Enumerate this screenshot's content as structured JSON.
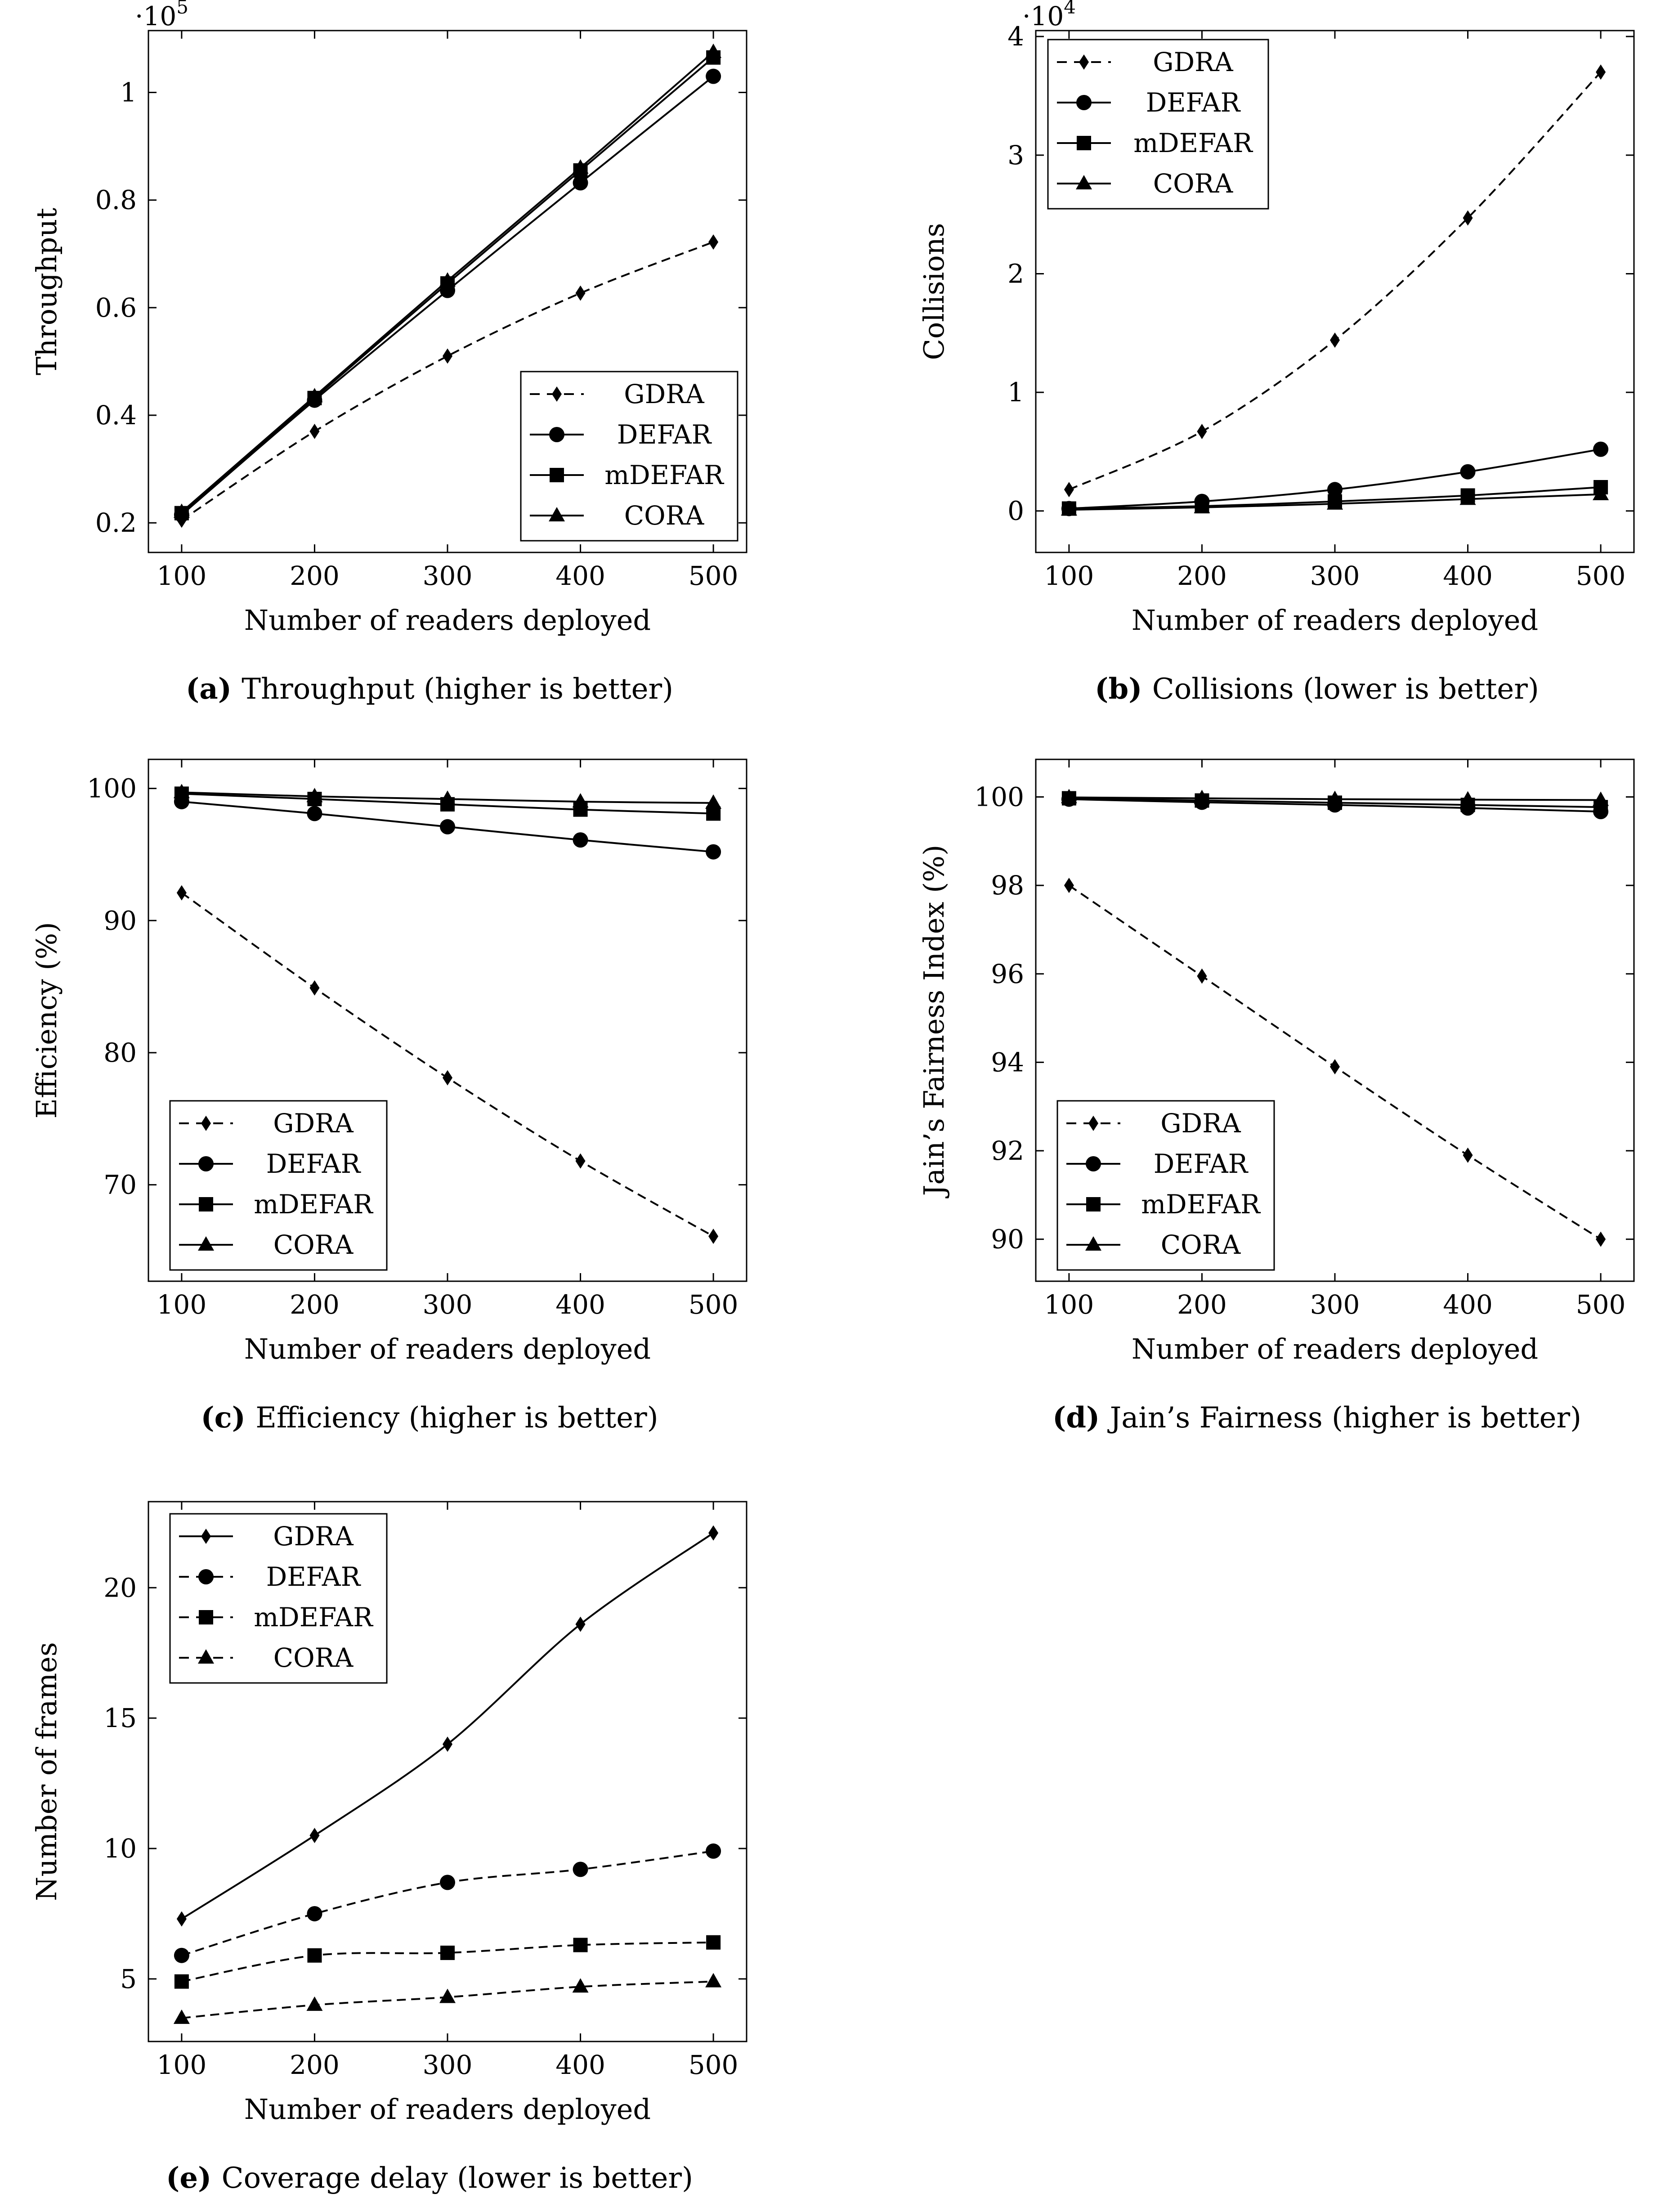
{
  "chart_data": [
    {
      "id": "a",
      "type": "line",
      "caption_letter": "(a)",
      "caption_text": "Throughput (higher is better)",
      "xlabel": "Number of readers deployed",
      "ylabel": "Throughput",
      "scale_label": "·10",
      "scale_exp": "5",
      "x": [
        100,
        200,
        300,
        400,
        500
      ],
      "xlim": [
        75,
        525
      ],
      "ylim": [
        0.145,
        1.115
      ],
      "yticks": [
        0.2,
        0.4,
        0.6,
        0.8,
        1
      ],
      "ytick_labels": [
        "0.2",
        "0.4",
        "0.6",
        "0.8",
        "1"
      ],
      "legend_position": "bottom-right",
      "series": [
        {
          "name": "GDRA",
          "marker": "diamond",
          "dashed": true,
          "values": [
            0.205,
            0.37,
            0.51,
            0.627,
            0.722
          ]
        },
        {
          "name": "DEFAR",
          "marker": "circle",
          "dashed": false,
          "values": [
            0.215,
            0.428,
            0.632,
            0.832,
            1.03
          ]
        },
        {
          "name": "mDEFAR",
          "marker": "square",
          "dashed": false,
          "values": [
            0.218,
            0.432,
            0.645,
            0.855,
            1.065
          ]
        },
        {
          "name": "CORA",
          "marker": "triangle",
          "dashed": false,
          "values": [
            0.22,
            0.435,
            0.65,
            0.86,
            1.075
          ]
        }
      ]
    },
    {
      "id": "b",
      "type": "line",
      "caption_letter": "(b)",
      "caption_text": "Collisions (lower is better)",
      "xlabel": "Number of readers deployed",
      "ylabel": "Collisions",
      "scale_label": "·10",
      "scale_exp": "4",
      "x": [
        100,
        200,
        300,
        400,
        500
      ],
      "xlim": [
        75,
        525
      ],
      "ylim": [
        -0.35,
        4.05
      ],
      "yticks": [
        0,
        1,
        2,
        3,
        4
      ],
      "ytick_labels": [
        "0",
        "1",
        "2",
        "3",
        "4"
      ],
      "legend_position": "top-left",
      "series": [
        {
          "name": "GDRA",
          "marker": "diamond",
          "dashed": true,
          "values": [
            0.18,
            0.67,
            1.44,
            2.47,
            3.7
          ]
        },
        {
          "name": "DEFAR",
          "marker": "circle",
          "dashed": false,
          "values": [
            0.02,
            0.08,
            0.18,
            0.33,
            0.52
          ]
        },
        {
          "name": "mDEFAR",
          "marker": "square",
          "dashed": false,
          "values": [
            0.02,
            0.04,
            0.08,
            0.13,
            0.2
          ]
        },
        {
          "name": "CORA",
          "marker": "triangle",
          "dashed": false,
          "values": [
            0.01,
            0.03,
            0.06,
            0.1,
            0.14
          ]
        }
      ]
    },
    {
      "id": "c",
      "type": "line",
      "caption_letter": "(c)",
      "caption_text": "Efficiency (higher is better)",
      "xlabel": "Number of readers deployed",
      "ylabel": "Efficiency (%)",
      "scale_label": "",
      "scale_exp": "",
      "x": [
        100,
        200,
        300,
        400,
        500
      ],
      "xlim": [
        75,
        525
      ],
      "ylim": [
        62.7,
        102.2
      ],
      "yticks": [
        70,
        80,
        90,
        100
      ],
      "ytick_labels": [
        "70",
        "80",
        "90",
        "100"
      ],
      "legend_position": "bottom-left",
      "series": [
        {
          "name": "GDRA",
          "marker": "diamond",
          "dashed": true,
          "values": [
            92.1,
            84.9,
            78.1,
            71.8,
            66.1
          ]
        },
        {
          "name": "DEFAR",
          "marker": "circle",
          "dashed": false,
          "values": [
            99.0,
            98.1,
            97.1,
            96.1,
            95.2
          ]
        },
        {
          "name": "mDEFAR",
          "marker": "square",
          "dashed": false,
          "values": [
            99.6,
            99.2,
            98.8,
            98.4,
            98.1
          ]
        },
        {
          "name": "CORA",
          "marker": "triangle",
          "dashed": false,
          "values": [
            99.7,
            99.4,
            99.2,
            99.0,
            98.9
          ]
        }
      ]
    },
    {
      "id": "d",
      "type": "line",
      "caption_letter": "(d)",
      "caption_text": "Jain’s Fairness (higher is better)",
      "xlabel": "Number of readers deployed",
      "ylabel": "Jain’s Fairness Index (%)",
      "scale_label": "",
      "scale_exp": "",
      "x": [
        100,
        200,
        300,
        400,
        500
      ],
      "xlim": [
        75,
        525
      ],
      "ylim": [
        89.05,
        100.85
      ],
      "yticks": [
        90,
        92,
        94,
        96,
        98,
        100
      ],
      "ytick_labels": [
        "90",
        "92",
        "94",
        "96",
        "98",
        "100"
      ],
      "legend_position": "bottom-left",
      "series": [
        {
          "name": "GDRA",
          "marker": "diamond",
          "dashed": true,
          "values": [
            98.0,
            95.95,
            93.9,
            91.9,
            90.0
          ]
        },
        {
          "name": "DEFAR",
          "marker": "circle",
          "dashed": false,
          "values": [
            99.95,
            99.88,
            99.82,
            99.75,
            99.67
          ]
        },
        {
          "name": "mDEFAR",
          "marker": "square",
          "dashed": false,
          "values": [
            99.97,
            99.92,
            99.87,
            99.82,
            99.77
          ]
        },
        {
          "name": "CORA",
          "marker": "triangle",
          "dashed": false,
          "values": [
            99.99,
            99.97,
            99.95,
            99.94,
            99.93
          ]
        }
      ]
    },
    {
      "id": "e",
      "type": "line",
      "caption_letter": "(e)",
      "caption_text": "Coverage delay (lower is better)",
      "xlabel": "Number of readers deployed",
      "ylabel": "Number of frames",
      "scale_label": "",
      "scale_exp": "",
      "x": [
        100,
        200,
        300,
        400,
        500
      ],
      "xlim": [
        75,
        525
      ],
      "ylim": [
        2.6,
        23.3
      ],
      "yticks": [
        5,
        10,
        15,
        20
      ],
      "ytick_labels": [
        "5",
        "10",
        "15",
        "20"
      ],
      "legend_position": "top-left",
      "series": [
        {
          "name": "GDRA",
          "marker": "diamond",
          "dashed": false,
          "values": [
            7.3,
            10.5,
            14.0,
            18.6,
            22.1
          ]
        },
        {
          "name": "DEFAR",
          "marker": "circle",
          "dashed": true,
          "values": [
            5.9,
            7.5,
            8.7,
            9.2,
            9.9
          ]
        },
        {
          "name": "mDEFAR",
          "marker": "square",
          "dashed": true,
          "values": [
            4.9,
            5.9,
            6.0,
            6.3,
            6.4
          ]
        },
        {
          "name": "CORA",
          "marker": "triangle",
          "dashed": true,
          "values": [
            3.5,
            4.0,
            4.3,
            4.7,
            4.9
          ]
        }
      ]
    }
  ]
}
